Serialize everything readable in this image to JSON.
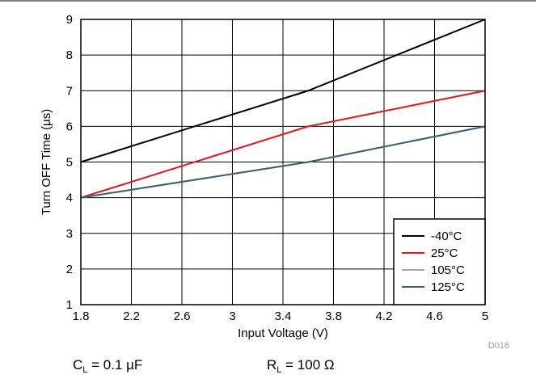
{
  "chart_data": {
    "type": "line",
    "xlabel": "Input Voltage (V)",
    "ylabel": "Turn OFF Time (µs)",
    "xlim": [
      1.8,
      5
    ],
    "ylim": [
      1,
      9
    ],
    "x_ticks": [
      "1.8",
      "2.2",
      "2.6",
      "3",
      "3.4",
      "3.8",
      "4.2",
      "4.6",
      "5"
    ],
    "y_ticks": [
      "1",
      "2",
      "3",
      "4",
      "5",
      "6",
      "7",
      "8",
      "9"
    ],
    "grid": true,
    "legend_position": "bottom-right",
    "series": [
      {
        "name": "-40°C",
        "color": "#000000",
        "x": [
          1.8,
          3.6,
          5
        ],
        "y": [
          5,
          7,
          9
        ]
      },
      {
        "name": "25°C",
        "color": "#e8141b",
        "x": [
          1.8,
          3.6,
          5
        ],
        "y": [
          4,
          6,
          7
        ]
      },
      {
        "name": "105°C",
        "color": "#a8a8a8",
        "x": [
          1.8,
          3.6,
          5
        ],
        "y": [
          4,
          5,
          6
        ]
      },
      {
        "name": "125°C",
        "color": "#3a6276",
        "x": [
          1.8,
          3.6,
          5
        ],
        "y": [
          4,
          5,
          6
        ]
      }
    ],
    "figure_id": "D016",
    "conditions": {
      "cl_main": "C",
      "cl_sub": "L",
      "cl_value": " = 0.1 µF",
      "rl_main": "R",
      "rl_sub": "L",
      "rl_value": " = 100 Ω"
    }
  }
}
